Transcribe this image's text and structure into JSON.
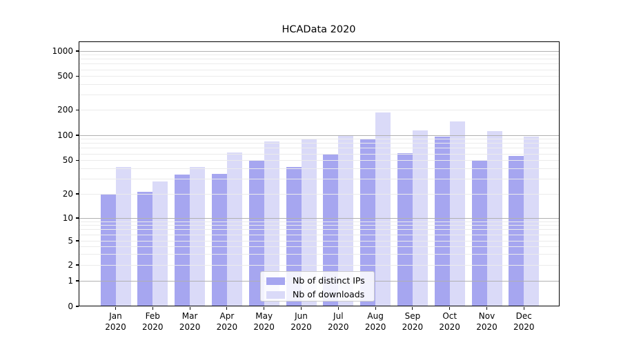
{
  "chart_data": {
    "type": "bar",
    "title": "HCAData 2020",
    "categories": [
      "Jan",
      "Feb",
      "Mar",
      "Apr",
      "May",
      "Jun",
      "Jul",
      "Aug",
      "Sep",
      "Oct",
      "Nov",
      "Dec"
    ],
    "category_year_line": "2020",
    "series": [
      {
        "name": "Nb of distinct IPs",
        "color": "#a6a6f0",
        "values": [
          20,
          21,
          34,
          35,
          51,
          42,
          60,
          90,
          61,
          96,
          51,
          57
        ]
      },
      {
        "name": "Nb of downloads",
        "color": "#dadaf8",
        "values": [
          42,
          28,
          42,
          62,
          85,
          90,
          100,
          185,
          114,
          147,
          112,
          96
        ]
      }
    ],
    "xlabel": "",
    "ylabel": "",
    "y_scale": "symlog",
    "y_tick_values": [
      0,
      1,
      2,
      5,
      10,
      20,
      50,
      100,
      200,
      500,
      1000
    ],
    "ylim": [
      0,
      1300
    ],
    "grid": true,
    "legend_position": "lower-center"
  },
  "colors": {
    "major_grid": "#b0b0b0",
    "minor_grid": "#ebebeb",
    "axis": "#000000",
    "legend_border": "#cccccc",
    "background": "#ffffff"
  }
}
